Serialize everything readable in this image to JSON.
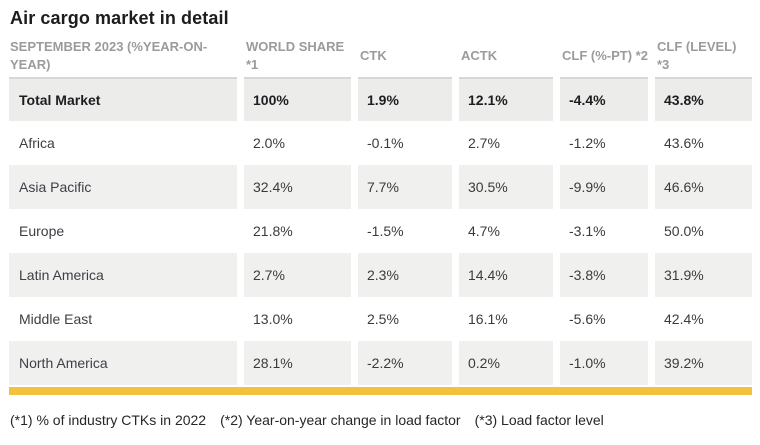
{
  "title": "Air cargo market in detail",
  "table": {
    "columns": {
      "period": "SEPTEMBER 2023 (%YEAR-ON-YEAR)",
      "world_share": "WORLD SHARE *1",
      "ctk": "CTK",
      "actk": "ACTK",
      "clf_pt": "CLF (%-PT) *2",
      "clf_level": "CLF (LEVEL) *3"
    },
    "rows": [
      {
        "label": "Total Market",
        "world_share": "100%",
        "ctk": "1.9%",
        "actk": "12.1%",
        "clf_pt": "-4.4%",
        "clf_level": "43.8%"
      },
      {
        "label": "Africa",
        "world_share": "2.0%",
        "ctk": "-0.1%",
        "actk": "2.7%",
        "clf_pt": "-1.2%",
        "clf_level": "43.6%"
      },
      {
        "label": "Asia Pacific",
        "world_share": "32.4%",
        "ctk": "7.7%",
        "actk": "30.5%",
        "clf_pt": "-9.9%",
        "clf_level": "46.6%"
      },
      {
        "label": "Europe",
        "world_share": "21.8%",
        "ctk": "-1.5%",
        "actk": "4.7%",
        "clf_pt": "-3.1%",
        "clf_level": "50.0%"
      },
      {
        "label": "Latin America",
        "world_share": "2.7%",
        "ctk": "2.3%",
        "actk": "14.4%",
        "clf_pt": "-3.8%",
        "clf_level": "31.9%"
      },
      {
        "label": "Middle East",
        "world_share": "13.0%",
        "ctk": "2.5%",
        "actk": "16.1%",
        "clf_pt": "-5.6%",
        "clf_level": "42.4%"
      },
      {
        "label": "North America",
        "world_share": "28.1%",
        "ctk": "-2.2%",
        "actk": "0.2%",
        "clf_pt": "-1.0%",
        "clf_level": "39.2%"
      }
    ]
  },
  "footnotes": {
    "note1": "(*1) % of industry CTKs in 2022",
    "note2": "(*2) Year-on-year change in load factor",
    "note3": "(*3) Load factor level"
  },
  "colors": {
    "accent_bar": "#f2c13e",
    "row_shaded": "#f0f0ef",
    "row_total": "#ececeb",
    "header_text": "#9b9b9b",
    "title_text": "#1b1c1e"
  },
  "chart_data": {
    "type": "table",
    "title": "Air cargo market in detail",
    "columns": [
      "SEPTEMBER 2023 (%YEAR-ON-YEAR)",
      "WORLD SHARE *1",
      "CTK",
      "ACTK",
      "CLF (%-PT) *2",
      "CLF (LEVEL) *3"
    ],
    "units": "percent",
    "rows": [
      {
        "region": "Total Market",
        "world_share_pct": 100.0,
        "ctk_yoy_pct": 1.9,
        "actk_yoy_pct": 12.1,
        "clf_change_ppt": -4.4,
        "clf_level_pct": 43.8
      },
      {
        "region": "Africa",
        "world_share_pct": 2.0,
        "ctk_yoy_pct": -0.1,
        "actk_yoy_pct": 2.7,
        "clf_change_ppt": -1.2,
        "clf_level_pct": 43.6
      },
      {
        "region": "Asia Pacific",
        "world_share_pct": 32.4,
        "ctk_yoy_pct": 7.7,
        "actk_yoy_pct": 30.5,
        "clf_change_ppt": -9.9,
        "clf_level_pct": 46.6
      },
      {
        "region": "Europe",
        "world_share_pct": 21.8,
        "ctk_yoy_pct": -1.5,
        "actk_yoy_pct": 4.7,
        "clf_change_ppt": -3.1,
        "clf_level_pct": 50.0
      },
      {
        "region": "Latin America",
        "world_share_pct": 2.7,
        "ctk_yoy_pct": 2.3,
        "actk_yoy_pct": 14.4,
        "clf_change_ppt": -3.8,
        "clf_level_pct": 31.9
      },
      {
        "region": "Middle East",
        "world_share_pct": 13.0,
        "ctk_yoy_pct": 2.5,
        "actk_yoy_pct": 16.1,
        "clf_change_ppt": -5.6,
        "clf_level_pct": 42.4
      },
      {
        "region": "North America",
        "world_share_pct": 28.1,
        "ctk_yoy_pct": -2.2,
        "actk_yoy_pct": 0.2,
        "clf_change_ppt": -1.0,
        "clf_level_pct": 39.2
      }
    ],
    "footnotes": [
      "(*1) % of industry CTKs in 2022",
      "(*2) Year-on-year change in load factor",
      "(*3) Load factor level"
    ]
  }
}
